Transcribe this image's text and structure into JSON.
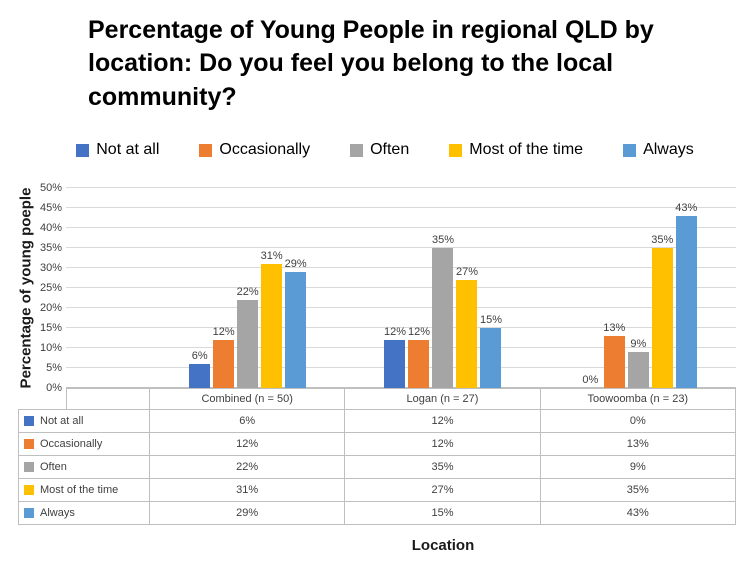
{
  "title": "Percentage of Young People in regional QLD by location: Do you feel you belong to the local community?",
  "y_axis_title": "Percentage of young poeple",
  "x_axis_title": "Location",
  "colors": {
    "not_at_all": "#4472C4",
    "occasionally": "#ED7D31",
    "often": "#A5A5A5",
    "most_of_the_time": "#FFC000",
    "always": "#5B9BD5",
    "gridline": "#D9D9D9",
    "table_border": "#BFBFBF"
  },
  "chart_data": {
    "type": "bar",
    "title": "Percentage of Young People in regional QLD by location: Do you feel you belong to the local community?",
    "xlabel": "Location",
    "ylabel": "Percentage of young poeple",
    "categories": [
      "Combined (n = 50)",
      "Logan (n = 27)",
      "Toowoomba (n = 23)"
    ],
    "series": [
      {
        "name": "Not at all",
        "color": "#4472C4",
        "values": [
          6,
          12,
          0
        ]
      },
      {
        "name": "Occasionally",
        "color": "#ED7D31",
        "values": [
          12,
          12,
          13
        ]
      },
      {
        "name": "Often",
        "color": "#A5A5A5",
        "values": [
          22,
          35,
          9
        ]
      },
      {
        "name": "Most of the time",
        "color": "#FFC000",
        "values": [
          31,
          27,
          35
        ]
      },
      {
        "name": "Always",
        "color": "#5B9BD5",
        "values": [
          29,
          15,
          43
        ]
      }
    ],
    "ylim": [
      0,
      50
    ],
    "y_tick_step": 5,
    "y_tick_suffix": "%",
    "value_suffix": "%",
    "grid": true,
    "legend_position": "top",
    "data_table": true
  }
}
